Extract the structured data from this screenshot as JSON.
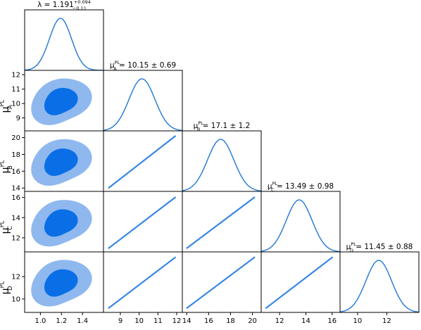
{
  "colors": {
    "line": "#1f77d4",
    "inner": "#0a6fe6",
    "outer": "#8fb8ee",
    "axis": "#000000"
  },
  "chart_data": {
    "type": "corner",
    "params": [
      {
        "key": "lambda",
        "sym": "λ",
        "sub": "",
        "sup": "",
        "lim": [
          0.85,
          1.6
        ],
        "ticks": [
          1.0,
          1.2,
          1.4
        ],
        "tick_labels": [
          "1.0",
          "1.2",
          "1.4"
        ],
        "mean": 1.191,
        "sd": 0.105,
        "title": {
          "pre": "λ = 1.191",
          "plus": "+0.094",
          "minus": "−0.11"
        }
      },
      {
        "key": "muA",
        "sym": "μ",
        "sub": "A",
        "sup": "PL",
        "lim": [
          8.1,
          12.3
        ],
        "ticks": [
          9,
          10,
          11,
          12
        ],
        "tick_labels": [
          "9",
          "10",
          "11",
          "12"
        ],
        "mean": 10.15,
        "sd": 0.69,
        "title": {
          "pre": "μ",
          "sub": "A",
          "sup": "PL",
          "post": " = 10.15 ± 0.69"
        }
      },
      {
        "key": "muB",
        "sym": "μ",
        "sub": "B",
        "sup": "PL",
        "lim": [
          13.6,
          20.8
        ],
        "ticks": [
          14,
          16,
          18,
          20
        ],
        "tick_labels": [
          "14",
          "16",
          "18",
          "20"
        ],
        "mean": 17.1,
        "sd": 1.2,
        "title": {
          "pre": "μ",
          "sub": "B",
          "sup": "PL",
          "post": " = 17.1 ± 1.2"
        }
      },
      {
        "key": "muC",
        "sym": "μ",
        "sub": "C",
        "sup": "PL",
        "lim": [
          10.6,
          16.6
        ],
        "ticks": [
          12,
          14,
          16
        ],
        "tick_labels": [
          "12",
          "14",
          "16"
        ],
        "mean": 13.49,
        "sd": 0.98,
        "title": {
          "pre": "μ",
          "sub": "C",
          "sup": "PL",
          "post": " = 13.49 ± 0.98"
        }
      },
      {
        "key": "muD",
        "sym": "μ",
        "sub": "D",
        "sup": "PL",
        "lim": [
          8.8,
          14.2
        ],
        "ticks": [
          10,
          12
        ],
        "tick_labels": [
          "10",
          "12"
        ],
        "mean": 11.45,
        "sd": 0.88,
        "title": {
          "pre": "μ",
          "sub": "D",
          "sup": "PL",
          "post": " = 11.45 ± 0.88"
        }
      }
    ],
    "row_ticks": {
      "muA": {
        "ticks": [
          9,
          10,
          11,
          12
        ],
        "tick_labels": [
          "9",
          "10",
          "11",
          "12"
        ]
      },
      "muB": {
        "ticks": [
          14,
          16,
          18,
          20
        ],
        "tick_labels": [
          "14",
          "16",
          "18",
          "20"
        ]
      },
      "muC": {
        "ticks": [
          12,
          14,
          16
        ],
        "tick_labels": [
          "12",
          "14",
          "16"
        ]
      },
      "muD": {
        "ticks": [
          10,
          12
        ],
        "tick_labels": [
          "10",
          "12"
        ]
      }
    },
    "correlated_pairs": "all mu parameters are perfectly linearly correlated; lambda is uncorrelated with mu parameters",
    "contour_levels": [
      "68%",
      "95%"
    ],
    "grid": false
  }
}
